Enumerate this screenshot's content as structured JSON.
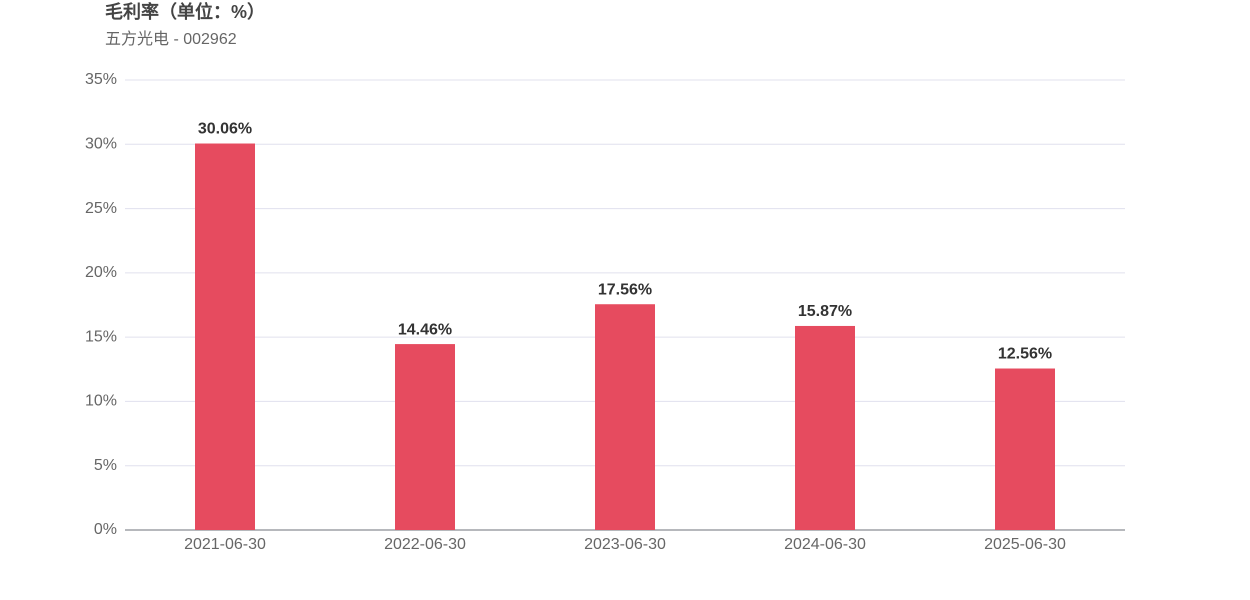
{
  "chart_data": {
    "type": "bar",
    "title": "毛利率（单位：%）",
    "subtitle": "五方光电 - 002962",
    "categories": [
      "2021-06-30",
      "2022-06-30",
      "2023-06-30",
      "2024-06-30",
      "2025-06-30"
    ],
    "values": [
      30.06,
      14.46,
      17.56,
      15.87,
      12.56
    ],
    "value_labels": [
      "30.06%",
      "14.46%",
      "17.56%",
      "15.87%",
      "12.56%"
    ],
    "color": "#e64b5f",
    "ylim": [
      0,
      35
    ],
    "yticks": [
      {
        "value": 0,
        "label": "0%"
      },
      {
        "value": 5,
        "label": "5%"
      },
      {
        "value": 10,
        "label": "10%"
      },
      {
        "value": 15,
        "label": "15%"
      },
      {
        "value": 20,
        "label": "20%"
      },
      {
        "value": 25,
        "label": "25%"
      },
      {
        "value": 30,
        "label": "30%"
      },
      {
        "value": 35,
        "label": "35%"
      }
    ],
    "grid": true
  }
}
